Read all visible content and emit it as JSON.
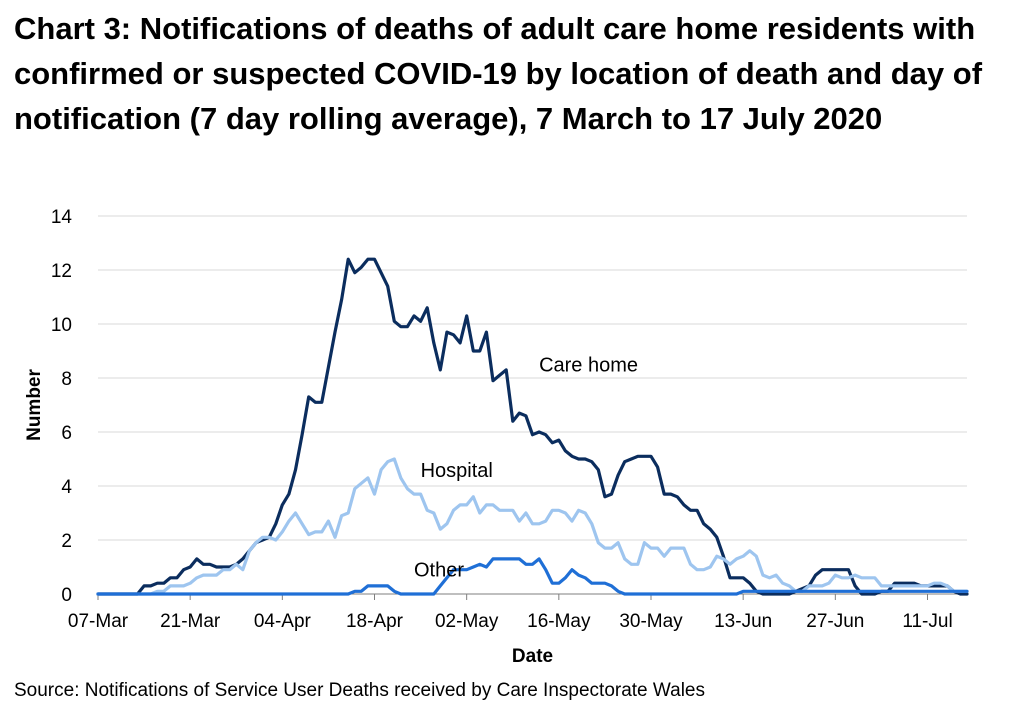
{
  "title": "Chart 3: Notifications of deaths of adult care home residents with confirmed or suspected COVID-19 by location of death and day of notification (7 day rolling average), 7 March to 17 July 2020",
  "source": "Source: Notifications of Service User Deaths received by Care Inspectorate Wales",
  "chart_data": {
    "type": "line",
    "title": "Chart 3: Notifications of deaths of adult care home residents with confirmed or suspected COVID-19 by location of death and day of notification (7 day rolling average), 7 March to 17 July 2020",
    "xlabel": "Date",
    "ylabel": "Number",
    "ylim": [
      0,
      14
    ],
    "yticks": [
      0,
      2,
      4,
      6,
      8,
      10,
      12,
      14
    ],
    "xlim": [
      "2020-03-07",
      "2020-07-17"
    ],
    "xtick_labels": [
      "07-Mar",
      "21-Mar",
      "04-Apr",
      "18-Apr",
      "02-May",
      "16-May",
      "30-May",
      "13-Jun",
      "27-Jun",
      "11-Jul"
    ],
    "grid": "horizontal",
    "legend": "none",
    "series": [
      {
        "name": "Care home",
        "color": "#0b2d5e",
        "x": [
          "2020-03-07",
          "2020-03-10",
          "2020-03-13",
          "2020-03-14",
          "2020-03-15",
          "2020-03-16",
          "2020-03-17",
          "2020-03-18",
          "2020-03-19",
          "2020-03-20",
          "2020-03-21",
          "2020-03-22",
          "2020-03-23",
          "2020-03-24",
          "2020-03-25",
          "2020-03-26",
          "2020-03-27",
          "2020-03-28",
          "2020-03-29",
          "2020-03-30",
          "2020-03-31",
          "2020-04-01",
          "2020-04-02",
          "2020-04-03",
          "2020-04-04",
          "2020-04-05",
          "2020-04-06",
          "2020-04-07",
          "2020-04-08",
          "2020-04-09",
          "2020-04-10",
          "2020-04-11",
          "2020-04-12",
          "2020-04-13",
          "2020-04-14",
          "2020-04-15",
          "2020-04-16",
          "2020-04-17",
          "2020-04-18",
          "2020-04-19",
          "2020-04-20",
          "2020-04-21",
          "2020-04-22",
          "2020-04-23",
          "2020-04-24",
          "2020-04-25",
          "2020-04-26",
          "2020-04-27",
          "2020-04-28",
          "2020-04-29",
          "2020-04-30",
          "2020-05-01",
          "2020-05-02",
          "2020-05-03",
          "2020-05-04",
          "2020-05-05",
          "2020-05-06",
          "2020-05-07",
          "2020-05-08",
          "2020-05-09",
          "2020-05-10",
          "2020-05-11",
          "2020-05-12",
          "2020-05-13",
          "2020-05-14",
          "2020-05-15",
          "2020-05-16",
          "2020-05-17",
          "2020-05-18",
          "2020-05-19",
          "2020-05-20",
          "2020-05-21",
          "2020-05-22",
          "2020-05-23",
          "2020-05-24",
          "2020-05-25",
          "2020-05-26",
          "2020-05-27",
          "2020-05-28",
          "2020-05-29",
          "2020-05-30",
          "2020-05-31",
          "2020-06-01",
          "2020-06-02",
          "2020-06-03",
          "2020-06-04",
          "2020-06-05",
          "2020-06-06",
          "2020-06-07",
          "2020-06-08",
          "2020-06-09",
          "2020-06-10",
          "2020-06-11",
          "2020-06-12",
          "2020-06-13",
          "2020-06-14",
          "2020-06-15",
          "2020-06-16",
          "2020-06-17",
          "2020-06-20",
          "2020-06-23",
          "2020-06-24",
          "2020-06-25",
          "2020-06-26",
          "2020-06-27",
          "2020-06-28",
          "2020-06-29",
          "2020-06-30",
          "2020-07-01",
          "2020-07-02",
          "2020-07-03",
          "2020-07-04",
          "2020-07-05",
          "2020-07-06",
          "2020-07-07",
          "2020-07-08",
          "2020-07-09",
          "2020-07-10",
          "2020-07-11",
          "2020-07-12",
          "2020-07-13",
          "2020-07-14",
          "2020-07-15",
          "2020-07-16",
          "2020-07-17"
        ],
        "y": [
          0,
          0,
          0,
          0.3,
          0.3,
          0.4,
          0.4,
          0.6,
          0.6,
          0.9,
          1.0,
          1.3,
          1.1,
          1.1,
          1.0,
          1.0,
          1.0,
          1.1,
          1.3,
          1.6,
          1.9,
          2.0,
          2.1,
          2.6,
          3.3,
          3.7,
          4.6,
          5.9,
          7.3,
          7.1,
          7.1,
          8.4,
          9.7,
          10.9,
          12.4,
          11.9,
          12.1,
          12.4,
          12.4,
          11.9,
          11.4,
          10.1,
          9.9,
          9.9,
          10.3,
          10.1,
          10.6,
          9.3,
          8.3,
          9.7,
          9.6,
          9.3,
          10.3,
          9.0,
          9.0,
          9.7,
          7.9,
          8.1,
          8.3,
          6.4,
          6.7,
          6.6,
          5.9,
          6.0,
          5.9,
          5.6,
          5.7,
          5.3,
          5.1,
          5.0,
          5.0,
          4.9,
          4.6,
          3.6,
          3.7,
          4.4,
          4.9,
          5.0,
          5.1,
          5.1,
          5.1,
          4.7,
          3.7,
          3.7,
          3.6,
          3.3,
          3.1,
          3.1,
          2.6,
          2.4,
          2.1,
          1.4,
          0.6,
          0.6,
          0.6,
          0.4,
          0.1,
          0,
          0,
          0,
          0.3,
          0.7,
          0.9,
          0.9,
          0.9,
          0.9,
          0.9,
          0.3,
          0,
          0,
          0,
          0.1,
          0.1,
          0.4,
          0.4,
          0.4,
          0.4,
          0.3,
          0.3,
          0.3,
          0.3,
          0.3,
          0.1,
          0,
          0
        ]
      },
      {
        "name": "Hospital",
        "color": "#9ec5ef",
        "x": [
          "2020-03-07",
          "2020-03-15",
          "2020-03-16",
          "2020-03-17",
          "2020-03-18",
          "2020-03-19",
          "2020-03-20",
          "2020-03-21",
          "2020-03-22",
          "2020-03-23",
          "2020-03-24",
          "2020-03-25",
          "2020-03-26",
          "2020-03-27",
          "2020-03-28",
          "2020-03-29",
          "2020-03-30",
          "2020-03-31",
          "2020-04-01",
          "2020-04-02",
          "2020-04-03",
          "2020-04-04",
          "2020-04-05",
          "2020-04-06",
          "2020-04-07",
          "2020-04-08",
          "2020-04-09",
          "2020-04-10",
          "2020-04-11",
          "2020-04-12",
          "2020-04-13",
          "2020-04-14",
          "2020-04-15",
          "2020-04-16",
          "2020-04-17",
          "2020-04-18",
          "2020-04-19",
          "2020-04-20",
          "2020-04-21",
          "2020-04-22",
          "2020-04-23",
          "2020-04-24",
          "2020-04-25",
          "2020-04-26",
          "2020-04-27",
          "2020-04-28",
          "2020-04-29",
          "2020-04-30",
          "2020-05-01",
          "2020-05-02",
          "2020-05-03",
          "2020-05-04",
          "2020-05-05",
          "2020-05-06",
          "2020-05-07",
          "2020-05-08",
          "2020-05-09",
          "2020-05-10",
          "2020-05-11",
          "2020-05-12",
          "2020-05-13",
          "2020-05-14",
          "2020-05-15",
          "2020-05-16",
          "2020-05-17",
          "2020-05-18",
          "2020-05-19",
          "2020-05-20",
          "2020-05-21",
          "2020-05-22",
          "2020-05-23",
          "2020-05-24",
          "2020-05-25",
          "2020-05-26",
          "2020-05-27",
          "2020-05-28",
          "2020-05-29",
          "2020-05-30",
          "2020-05-31",
          "2020-06-01",
          "2020-06-02",
          "2020-06-03",
          "2020-06-04",
          "2020-06-05",
          "2020-06-06",
          "2020-06-07",
          "2020-06-08",
          "2020-06-09",
          "2020-06-10",
          "2020-06-11",
          "2020-06-12",
          "2020-06-13",
          "2020-06-14",
          "2020-06-15",
          "2020-06-16",
          "2020-06-17",
          "2020-06-18",
          "2020-06-19",
          "2020-06-20",
          "2020-06-21",
          "2020-06-22",
          "2020-06-23",
          "2020-06-24",
          "2020-06-25",
          "2020-06-26",
          "2020-06-27",
          "2020-06-28",
          "2020-06-29",
          "2020-06-30",
          "2020-07-01",
          "2020-07-02",
          "2020-07-03",
          "2020-07-04",
          "2020-07-05",
          "2020-07-06",
          "2020-07-07",
          "2020-07-08",
          "2020-07-09",
          "2020-07-10",
          "2020-07-11",
          "2020-07-12",
          "2020-07-13",
          "2020-07-14",
          "2020-07-15",
          "2020-07-16",
          "2020-07-17"
        ],
        "y": [
          0,
          0,
          0.1,
          0.1,
          0.3,
          0.3,
          0.3,
          0.4,
          0.6,
          0.7,
          0.7,
          0.7,
          0.9,
          0.9,
          1.1,
          0.9,
          1.6,
          1.9,
          2.1,
          2.1,
          2.0,
          2.3,
          2.7,
          3.0,
          2.6,
          2.2,
          2.3,
          2.3,
          2.7,
          2.1,
          2.9,
          3.0,
          3.9,
          4.1,
          4.3,
          3.7,
          4.6,
          4.9,
          5.0,
          4.3,
          3.9,
          3.7,
          3.7,
          3.1,
          3.0,
          2.4,
          2.6,
          3.1,
          3.3,
          3.3,
          3.6,
          3.0,
          3.3,
          3.3,
          3.1,
          3.1,
          3.1,
          2.7,
          3.0,
          2.6,
          2.6,
          2.7,
          3.1,
          3.1,
          3.0,
          2.7,
          3.1,
          3.0,
          2.6,
          1.9,
          1.7,
          1.7,
          1.9,
          1.3,
          1.1,
          1.1,
          1.9,
          1.7,
          1.7,
          1.4,
          1.7,
          1.7,
          1.7,
          1.1,
          0.9,
          0.9,
          1.0,
          1.4,
          1.3,
          1.1,
          1.3,
          1.4,
          1.6,
          1.4,
          0.7,
          0.6,
          0.7,
          0.4,
          0.3,
          0.1,
          0.1,
          0.3,
          0.3,
          0.3,
          0.4,
          0.7,
          0.6,
          0.6,
          0.7,
          0.6,
          0.6,
          0.6,
          0.3,
          0.3,
          0.3,
          0.3,
          0.3,
          0.3,
          0.3,
          0.3,
          0.4,
          0.4,
          0.3,
          0.1,
          0.1,
          0.1
        ]
      },
      {
        "name": "Other",
        "color": "#1f6fd6",
        "x": [
          "2020-03-07",
          "2020-04-14",
          "2020-04-15",
          "2020-04-16",
          "2020-04-17",
          "2020-04-18",
          "2020-04-19",
          "2020-04-20",
          "2020-04-21",
          "2020-04-22",
          "2020-04-27",
          "2020-04-28",
          "2020-04-29",
          "2020-04-30",
          "2020-05-01",
          "2020-05-02",
          "2020-05-03",
          "2020-05-04",
          "2020-05-05",
          "2020-05-06",
          "2020-05-07",
          "2020-05-08",
          "2020-05-09",
          "2020-05-10",
          "2020-05-11",
          "2020-05-12",
          "2020-05-13",
          "2020-05-14",
          "2020-05-15",
          "2020-05-16",
          "2020-05-17",
          "2020-05-18",
          "2020-05-19",
          "2020-05-20",
          "2020-05-21",
          "2020-05-22",
          "2020-05-23",
          "2020-05-24",
          "2020-05-25",
          "2020-05-26",
          "2020-05-27",
          "2020-06-12",
          "2020-06-13",
          "2020-07-17"
        ],
        "y": [
          0,
          0,
          0.1,
          0.1,
          0.3,
          0.3,
          0.3,
          0.3,
          0.1,
          0,
          0,
          0.3,
          0.6,
          0.9,
          0.9,
          0.9,
          1.0,
          1.1,
          1.0,
          1.3,
          1.3,
          1.3,
          1.3,
          1.3,
          1.1,
          1.1,
          1.3,
          0.9,
          0.4,
          0.4,
          0.6,
          0.9,
          0.7,
          0.6,
          0.4,
          0.4,
          0.4,
          0.3,
          0.1,
          0,
          0,
          0,
          0.1,
          0.1
        ]
      }
    ],
    "annotations": [
      {
        "text": "Care home",
        "x": "2020-05-13",
        "y": 8.5
      },
      {
        "text": "Hospital",
        "x": "2020-04-25",
        "y": 4.6
      },
      {
        "text": "Other",
        "x": "2020-04-24",
        "y": 0.9
      }
    ]
  }
}
